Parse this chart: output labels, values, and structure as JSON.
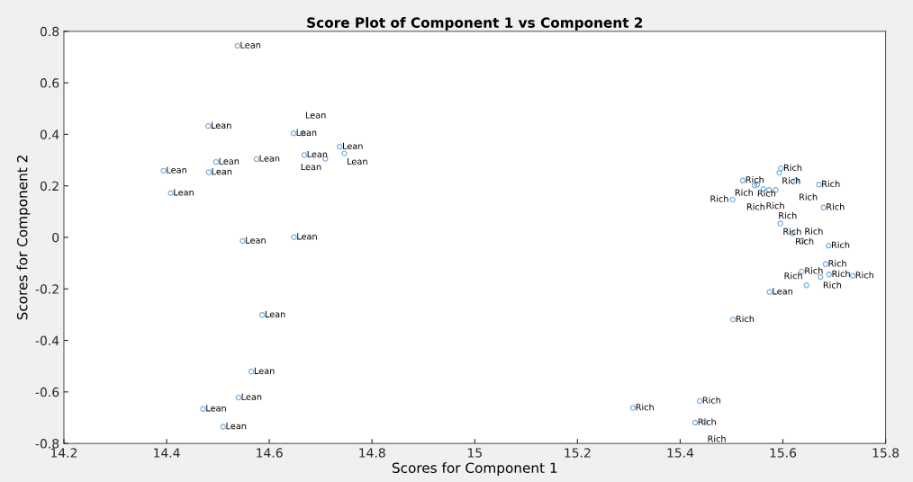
{
  "chart_data": {
    "type": "scatter",
    "title": "Score Plot of Component 1 vs Component 2",
    "xlabel": "Scores for Component 1",
    "ylabel": "Scores for Component 2",
    "xlim": [
      14.2,
      15.8
    ],
    "xticks": [
      14.2,
      14.4,
      14.6,
      14.8,
      15,
      15.2,
      15.4,
      15.6,
      15.8
    ],
    "ylim": [
      -0.8,
      0.8
    ],
    "yticks": [
      -0.8,
      -0.6,
      -0.4,
      -0.2,
      0,
      0.2,
      0.4,
      0.6,
      0.8
    ],
    "grid": false,
    "legend": false,
    "marker": "circle",
    "series": [
      {
        "color": "#6fa8dc",
        "x": [
          14.538,
          14.481,
          14.647,
          14.665,
          14.737,
          14.746,
          14.668,
          14.709,
          14.575,
          14.496,
          14.394,
          14.482,
          14.408,
          14.648,
          14.548,
          14.586,
          14.565,
          14.54,
          14.471,
          14.51,
          15.574,
          15.596,
          15.593,
          15.522,
          15.626,
          15.67,
          15.545,
          15.55,
          15.562,
          15.573,
          15.586,
          15.502,
          15.679,
          15.595,
          15.619,
          15.637,
          15.689,
          15.683,
          15.637,
          15.69,
          15.673,
          15.736,
          15.646,
          15.503,
          15.438,
          15.308,
          15.429,
          15.448
        ],
        "values": [
          0.744,
          0.432,
          0.404,
          0.404,
          0.352,
          0.326,
          0.32,
          0.305,
          0.304,
          0.293,
          0.259,
          0.253,
          0.172,
          0.001,
          -0.014,
          -0.301,
          -0.521,
          -0.622,
          -0.666,
          -0.735,
          -0.212,
          0.268,
          0.251,
          0.221,
          0.222,
          0.205,
          0.202,
          0.205,
          0.188,
          0.184,
          0.184,
          0.147,
          0.116,
          0.054,
          0.016,
          -0.013,
          -0.032,
          -0.104,
          -0.132,
          -0.144,
          -0.154,
          -0.149,
          -0.186,
          -0.319,
          -0.635,
          -0.662,
          -0.719,
          -0.717
        ]
      }
    ],
    "annotations": [
      {
        "text": "Lean",
        "x": 14.538,
        "y": 0.744
      },
      {
        "text": "Lean",
        "x": 14.481,
        "y": 0.432
      },
      {
        "text": "Lean",
        "x": 14.647,
        "y": 0.404
      },
      {
        "text": "Lean",
        "x": 14.665,
        "y": 0.404
      },
      {
        "text": "Lean",
        "x": 14.737,
        "y": 0.352
      },
      {
        "text": "Lean",
        "x": 14.746,
        "y": 0.326
      },
      {
        "text": "Lean",
        "x": 14.668,
        "y": 0.32
      },
      {
        "text": "Lean",
        "x": 14.709,
        "y": 0.305
      },
      {
        "text": "Lean",
        "x": 14.575,
        "y": 0.304
      },
      {
        "text": "Lean",
        "x": 14.496,
        "y": 0.293
      },
      {
        "text": "Lean",
        "x": 14.394,
        "y": 0.259
      },
      {
        "text": "Lean",
        "x": 14.482,
        "y": 0.253
      },
      {
        "text": "Lean",
        "x": 14.408,
        "y": 0.172
      },
      {
        "text": "Lean",
        "x": 14.648,
        "y": 0.001
      },
      {
        "text": "Lean",
        "x": 14.548,
        "y": -0.014
      },
      {
        "text": "Lean",
        "x": 14.586,
        "y": -0.301
      },
      {
        "text": "Lean",
        "x": 14.565,
        "y": -0.521
      },
      {
        "text": "Lean",
        "x": 14.54,
        "y": -0.622
      },
      {
        "text": "Lean",
        "x": 14.471,
        "y": -0.666
      },
      {
        "text": "Lean",
        "x": 14.51,
        "y": -0.735
      },
      {
        "text": "Lean",
        "x": 15.574,
        "y": -0.212
      },
      {
        "text": "Rich",
        "x": 15.596,
        "y": 0.268
      },
      {
        "text": "Rich",
        "x": 15.593,
        "y": 0.251
      },
      {
        "text": "Rich",
        "x": 15.522,
        "y": 0.221
      },
      {
        "text": "Rich",
        "x": 15.626,
        "y": 0.222
      },
      {
        "text": "Rich",
        "x": 15.67,
        "y": 0.205
      },
      {
        "text": "Rich",
        "x": 15.545,
        "y": 0.202
      },
      {
        "text": "Rich",
        "x": 15.55,
        "y": 0.205
      },
      {
        "text": "Rich",
        "x": 15.562,
        "y": 0.188
      },
      {
        "text": "Rich",
        "x": 15.573,
        "y": 0.184
      },
      {
        "text": "Rich",
        "x": 15.586,
        "y": 0.184
      },
      {
        "text": "Rich",
        "x": 15.502,
        "y": 0.147
      },
      {
        "text": "Rich",
        "x": 15.679,
        "y": 0.116
      },
      {
        "text": "Rich",
        "x": 15.595,
        "y": 0.054
      },
      {
        "text": "Rich",
        "x": 15.619,
        "y": 0.016
      },
      {
        "text": "Rich",
        "x": 15.637,
        "y": -0.013
      },
      {
        "text": "Rich",
        "x": 15.689,
        "y": -0.032
      },
      {
        "text": "Rich",
        "x": 15.683,
        "y": -0.104
      },
      {
        "text": "Rich",
        "x": 15.637,
        "y": -0.132
      },
      {
        "text": "Rich",
        "x": 15.69,
        "y": -0.144
      },
      {
        "text": "Rich",
        "x": 15.673,
        "y": -0.154
      },
      {
        "text": "Rich",
        "x": 15.736,
        "y": -0.149
      },
      {
        "text": "Rich",
        "x": 15.646,
        "y": -0.186
      },
      {
        "text": "Rich",
        "x": 15.503,
        "y": -0.319
      },
      {
        "text": "Rich",
        "x": 15.438,
        "y": -0.635
      },
      {
        "text": "Rich",
        "x": 15.308,
        "y": -0.662
      },
      {
        "text": "Rich",
        "x": 15.429,
        "y": -0.719
      },
      {
        "text": "Rich",
        "x": 15.448,
        "y": -0.717
      }
    ]
  }
}
